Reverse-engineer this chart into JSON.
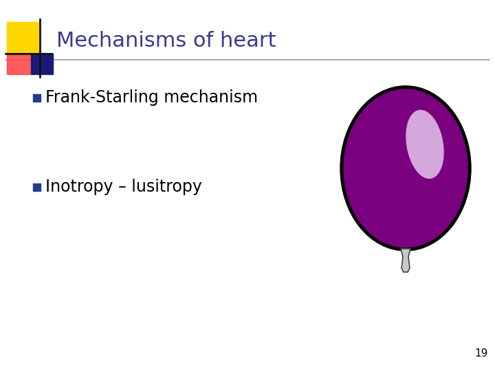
{
  "title": "Mechanisms of heart",
  "title_color": "#3B3B8C",
  "bullet1": "Frank-Starling mechanism",
  "bullet2": "Inotropy – lusitropy",
  "bullet_color": "#000000",
  "bullet_marker_color": "#1F3E8C",
  "page_number": "19",
  "background_color": "#FFFFFF",
  "balloon_body_color": "#7B0080",
  "balloon_highlight_color": "#D4A8DC",
  "balloon_outline_color": "#000000",
  "decoration_yellow": "#FFD700",
  "decoration_red": "#FF4040",
  "decoration_blue_dark": "#1A1A7A",
  "decoration_blue_light": "#4060C0",
  "title_fontsize": 22,
  "bullet_fontsize": 17,
  "line_color": "#9999BB"
}
